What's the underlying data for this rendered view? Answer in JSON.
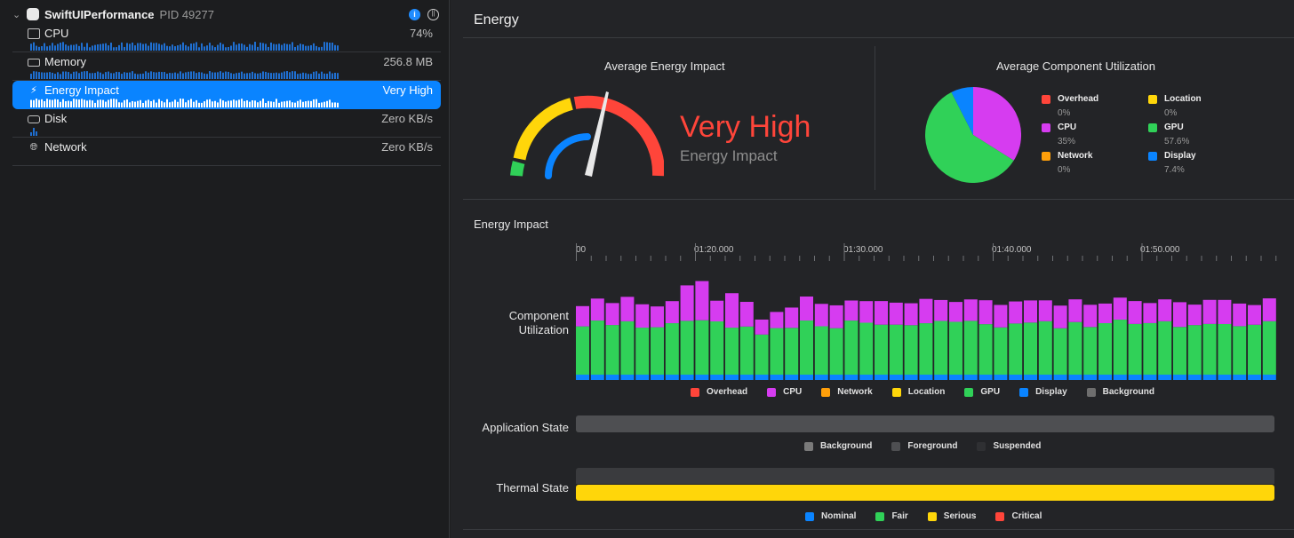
{
  "sidebar": {
    "process": {
      "name": "SwiftUIPerformance",
      "pid": "PID 49277"
    },
    "gauges": [
      {
        "label": "CPU",
        "value": "74%",
        "icon": "cpu-chip-icon"
      },
      {
        "label": "Memory",
        "value": "256.8 MB",
        "icon": "memory-icon"
      },
      {
        "label": "Energy Impact",
        "value": "Very High",
        "icon": "bolt-icon"
      },
      {
        "label": "Disk",
        "value": "Zero KB/s",
        "icon": "disk-icon"
      },
      {
        "label": "Network",
        "value": "Zero KB/s",
        "icon": "globe-icon"
      }
    ]
  },
  "main": {
    "title": "Energy",
    "avg_energy": {
      "title": "Average Energy Impact",
      "level": "Very High",
      "subtitle": "Energy Impact"
    },
    "avg_component": {
      "title": "Average Component Utilization",
      "items": [
        {
          "name": "Overhead",
          "value": "0%",
          "color": "#ff453a"
        },
        {
          "name": "Location",
          "value": "0%",
          "color": "#ffd60a"
        },
        {
          "name": "CPU",
          "value": "35%",
          "color": "#d63cf0"
        },
        {
          "name": "GPU",
          "value": "57.6%",
          "color": "#30d158"
        },
        {
          "name": "Network",
          "value": "0%",
          "color": "#ff9f0a"
        },
        {
          "name": "Display",
          "value": "7.4%",
          "color": "#0a84ff"
        }
      ]
    },
    "timeline": {
      "title": "Energy Impact",
      "ticks": [
        "00",
        "01:20.000",
        "01:30.000",
        "01:40.000",
        "01:50.000"
      ],
      "component_label_line1": "Component",
      "component_label_line2": "Utilization",
      "component_legend": [
        {
          "name": "Overhead",
          "color": "#ff453a"
        },
        {
          "name": "CPU",
          "color": "#d63cf0"
        },
        {
          "name": "Network",
          "color": "#ff9f0a"
        },
        {
          "name": "Location",
          "color": "#ffd60a"
        },
        {
          "name": "GPU",
          "color": "#30d158"
        },
        {
          "name": "Display",
          "color": "#0a84ff"
        },
        {
          "name": "Background",
          "color": "#6e6e6e"
        }
      ],
      "app_state_label": "Application State",
      "app_state_legend": [
        {
          "name": "Background",
          "color": "#7a7a7a"
        },
        {
          "name": "Foreground",
          "color": "#4e4f52"
        },
        {
          "name": "Suspended",
          "color": "#2f3033"
        }
      ],
      "thermal_label": "Thermal State",
      "thermal_legend": [
        {
          "name": "Nominal",
          "color": "#0a84ff"
        },
        {
          "name": "Fair",
          "color": "#30d158"
        },
        {
          "name": "Serious",
          "color": "#ffd60a"
        },
        {
          "name": "Critical",
          "color": "#ff453a"
        }
      ]
    }
  }
}
